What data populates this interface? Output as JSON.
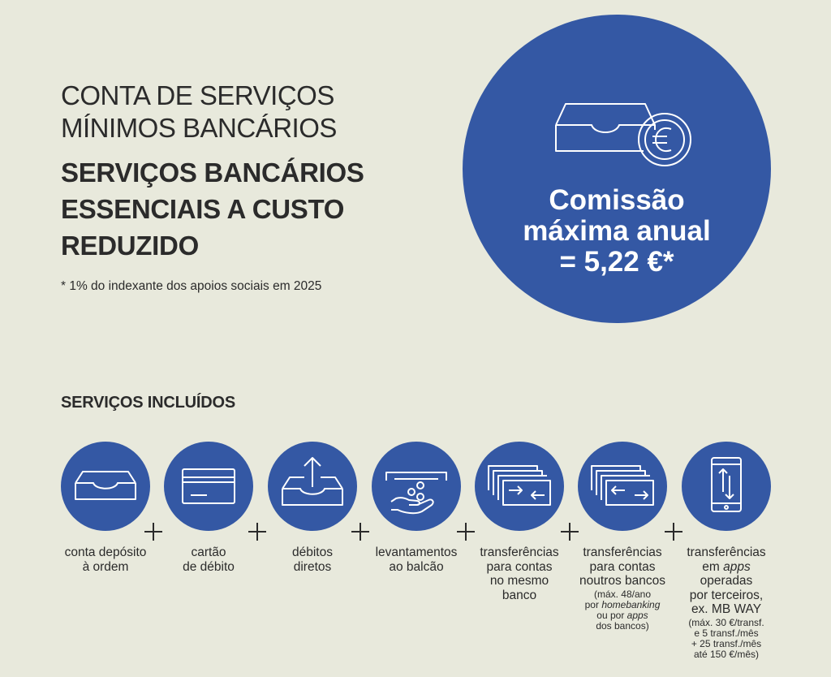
{
  "header": {
    "title_line1": "CONTA DE SERVIÇOS",
    "title_line2": "MÍNIMOS BANCÁRIOS",
    "subtitle_line1": "SERVIÇOS BANCÁRIOS",
    "subtitle_line2": "ESSENCIAIS A CUSTO",
    "subtitle_line3": "REDUZIDO",
    "footnote": "* 1% do indexante dos apoios sociais em 2025"
  },
  "fee": {
    "icon": "inbox-euro-icon",
    "line1": "Comissão",
    "line2": "máxima anual",
    "line3": "= 5,22 €*"
  },
  "services": {
    "title": "SERVIÇOS INCLUÍDOS",
    "items": [
      {
        "icon": "inbox-tray-icon",
        "line1": "conta depósito",
        "line2": "à ordem"
      },
      {
        "icon": "card-icon",
        "line1": "cartão",
        "line2": "de débito"
      },
      {
        "icon": "tray-upload-icon",
        "line1": "débitos",
        "line2": "diretos"
      },
      {
        "icon": "hand-coins-icon",
        "line1": "levantamentos",
        "line2": "ao balcão"
      },
      {
        "icon": "transfer-same-bank-icon",
        "line1": "transferências",
        "line2": "para contas",
        "line3": "no mesmo",
        "line4": "banco"
      },
      {
        "icon": "transfer-other-bank-icon",
        "line1": "transferências",
        "line2": "para contas",
        "line3": "noutros bancos",
        "note1": "(máx. 48/ano",
        "note2a": "por ",
        "note2b": "homebanking",
        "note3a": "ou por ",
        "note3b": "apps",
        "note4": "dos bancos)"
      },
      {
        "icon": "phone-transfer-icon",
        "line1": "transferências",
        "line2a": "em ",
        "line2b": "apps",
        "line3": "operadas",
        "line4": "por terceiros,",
        "line5": "ex. MB WAY",
        "note1": "(máx. 30 €/transf.",
        "note2": "e 5 transf./mês",
        "note3": "+ 25 transf./mês",
        "note4": "até 150 €/mês)"
      }
    ]
  },
  "colors": {
    "background": "#e8e9dc",
    "accent": "#3458a4",
    "text": "#2b2b2b"
  }
}
